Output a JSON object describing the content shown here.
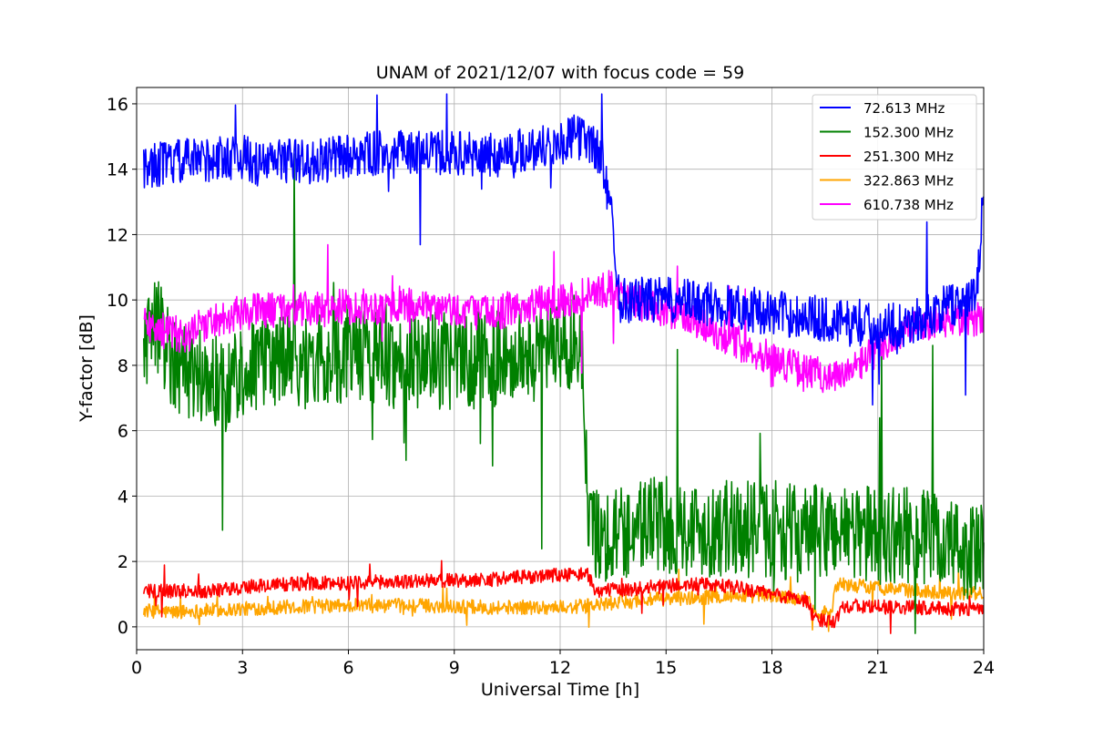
{
  "chart_data": {
    "type": "line",
    "title": "UNAM of 2021/12/07 with focus code = 59",
    "xlabel": "Universal Time [h]",
    "ylabel": "Y-factor [dB]",
    "xlim": [
      0,
      24
    ],
    "ylim": [
      -0.7,
      16.5
    ],
    "xticks": [
      0,
      3,
      6,
      9,
      12,
      15,
      18,
      21,
      24
    ],
    "yticks": [
      0,
      2,
      4,
      6,
      8,
      10,
      12,
      14,
      16
    ],
    "grid": true,
    "legend_position": "top-right",
    "series": [
      {
        "name": " 72.613 MHz",
        "color": "#0000ff",
        "x": [
          0.2,
          1,
          2,
          3,
          3.5,
          4,
          5,
          6,
          7,
          8,
          9,
          10,
          11,
          12,
          12.5,
          12.8,
          13.2,
          13.5,
          13.7,
          14,
          15,
          16,
          17,
          18,
          19,
          20,
          21,
          22,
          23,
          23.8,
          24
        ],
        "y": [
          14.1,
          14.2,
          14.3,
          14.4,
          14.1,
          14.3,
          14.2,
          14.4,
          14.5,
          14.5,
          14.5,
          14.4,
          14.6,
          14.8,
          15.0,
          14.9,
          14.3,
          12.2,
          10.0,
          10.0,
          10.0,
          9.9,
          9.8,
          9.6,
          9.5,
          9.3,
          9.2,
          9.3,
          9.8,
          10.1,
          13.3
        ],
        "noise": 0.7
      },
      {
        "name": "152.300 MHz",
        "color": "#008000",
        "x": [
          0.2,
          0.5,
          1,
          1.5,
          2,
          2.5,
          3,
          3.5,
          4,
          4.5,
          5,
          6,
          6.5,
          7,
          7.5,
          8,
          9,
          10,
          11,
          12,
          12.6,
          12.8,
          13.5,
          14,
          14.5,
          15,
          16,
          17,
          18,
          19,
          20,
          21,
          22,
          23,
          24
        ],
        "y": [
          8.0,
          9.5,
          8.2,
          7.8,
          7.6,
          7.4,
          7.9,
          8.0,
          8.1,
          8.2,
          8.0,
          8.4,
          8.4,
          8.2,
          8.1,
          8.2,
          8.1,
          8.2,
          8.3,
          8.6,
          8.8,
          3.0,
          2.8,
          3.0,
          3.2,
          3.1,
          3.0,
          3.0,
          3.0,
          2.8,
          3.0,
          2.8,
          2.8,
          2.5,
          2.2
        ],
        "noise": 1.5
      },
      {
        "name": "251.300 MHz",
        "color": "#ff0000",
        "x": [
          0.2,
          2,
          3,
          4,
          6,
          8,
          10,
          12,
          12.8,
          13,
          14,
          15,
          16,
          17,
          18,
          19,
          19.2,
          19.8,
          20,
          21,
          22,
          23,
          24
        ],
        "y": [
          1.1,
          1.1,
          1.2,
          1.3,
          1.35,
          1.4,
          1.45,
          1.6,
          1.6,
          1.1,
          1.15,
          1.25,
          1.3,
          1.2,
          1.0,
          0.8,
          0.2,
          0.2,
          0.65,
          0.6,
          0.6,
          0.55,
          0.55
        ],
        "noise": 0.22
      },
      {
        "name": "322.863 MHz",
        "color": "#ffa500",
        "x": [
          0.2,
          1,
          2,
          3,
          4,
          6,
          8,
          10,
          12,
          13,
          14,
          15,
          16,
          17,
          18,
          19,
          19.2,
          19.7,
          19.8,
          20,
          21,
          22,
          23,
          24
        ],
        "y": [
          0.5,
          0.45,
          0.5,
          0.55,
          0.6,
          0.65,
          0.65,
          0.6,
          0.6,
          0.65,
          0.8,
          0.85,
          0.9,
          0.95,
          0.95,
          0.85,
          0.45,
          0.45,
          1.3,
          1.3,
          1.2,
          1.1,
          1.05,
          1.0
        ],
        "noise": 0.22
      },
      {
        "name": "610.738 MHz",
        "color": "#ff00ff",
        "x": [
          0.2,
          0.6,
          1,
          1.5,
          2,
          2.5,
          3,
          3.5,
          4,
          5,
          6,
          7,
          7.5,
          8,
          9,
          10,
          11,
          12,
          12.5,
          13,
          13.5,
          14,
          14.5,
          15,
          16,
          17,
          18,
          19,
          20,
          21,
          22,
          23,
          24
        ],
        "y": [
          9.3,
          9.1,
          9.0,
          8.9,
          9.3,
          9.5,
          9.6,
          9.7,
          9.7,
          9.7,
          9.8,
          9.8,
          9.9,
          9.7,
          9.7,
          9.6,
          9.8,
          10.0,
          10.1,
          10.2,
          10.4,
          10.0,
          9.8,
          9.6,
          9.3,
          8.7,
          8.2,
          7.8,
          7.6,
          8.5,
          9.2,
          9.4,
          9.4
        ],
        "noise": 0.55
      }
    ]
  }
}
